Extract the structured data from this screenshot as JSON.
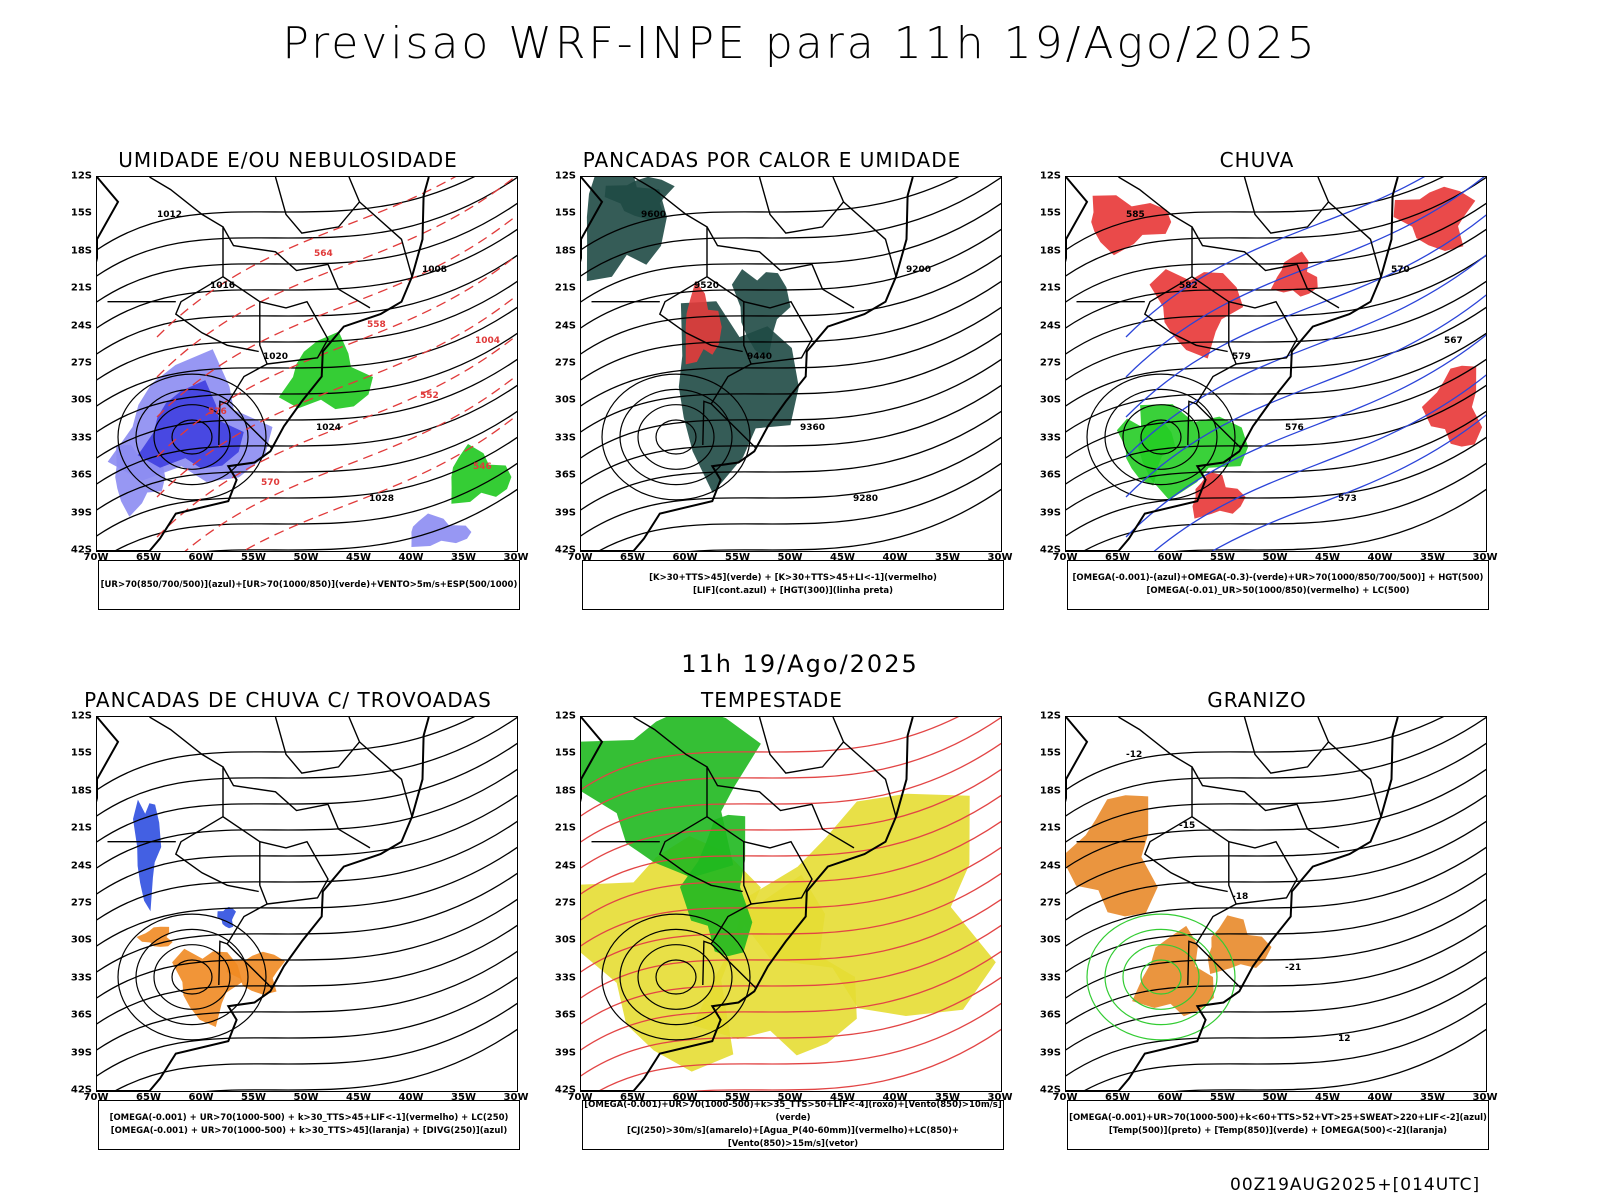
{
  "header": {
    "title": "Previsao WRF-INPE  para 11h 19/Ago/2025"
  },
  "mid_label": "11h 19/Ago/2025",
  "footer": "00Z19AUG2025+[014UTC]",
  "axes": {
    "lat": [
      "12S",
      "15S",
      "18S",
      "21S",
      "24S",
      "27S",
      "30S",
      "33S",
      "36S",
      "39S",
      "42S"
    ],
    "lon": [
      "70W",
      "65W",
      "60W",
      "55W",
      "50W",
      "45W",
      "40W",
      "35W",
      "30W"
    ]
  },
  "panels": [
    {
      "title": "UMIDADE E/OU NEBULOSIDADE",
      "legend": [
        "[UR>70(850/700/500)](azul)+[UR>70(1000/850)](verde)+VENTO>5m/s+ESP(500/1000)"
      ],
      "labels": [
        "1012",
        "1016",
        "1020",
        "1024",
        "1028",
        "1008",
        "1004",
        "576",
        "570",
        "564",
        "558",
        "552",
        "546"
      ],
      "colors": {
        "fill1": "#8c8cf2",
        "fill2": "#3f3fe0",
        "contour": "#e03a3a",
        "green": "#1fc81f"
      }
    },
    {
      "title": "PANCADAS POR CALOR E UMIDADE",
      "legend": [
        "[K>30+TTS>45](verde) + [K>30+TTS>45+LI<-1](vermelho)",
        "[LIF](cont.azul) + [HGT(300)](linha preta)"
      ],
      "labels": [
        "9600",
        "9520",
        "9440",
        "9360",
        "9280",
        "9200"
      ],
      "colors": {
        "fill1": "#1f4a45",
        "fill2": "#e33b3b",
        "contour": "#2b44d8"
      }
    },
    {
      "title": "CHUVA",
      "legend": [
        "[OMEGA(-0.001)-(azul)+OMEGA(-0.3)-(verde)+UR>70(1000/850/700/500)] + HGT(500)",
        "[OMEGA(-0.01)_UR>50(1000/850)(vermelho) + LC(500)"
      ],
      "labels": [
        "585",
        "582",
        "579",
        "576",
        "573",
        "570",
        "567"
      ],
      "colors": {
        "fill1": "#e83636",
        "fill2": "#25cc25",
        "contour": "#2b44d8"
      }
    },
    {
      "title": "PANCADAS DE CHUVA C/ TROVOADAS",
      "legend": [
        "[OMEGA(-0.001) + UR>70(1000-500) + k>30_TTS>45+LIF<-1](vermelho) + LC(250)",
        "[OMEGA(-0.001) + UR>70(1000-500) + k>30_TTS>45](laranja) + [DIVG(250)](azul)"
      ],
      "labels": [],
      "colors": {
        "fill1": "#f08a22",
        "fill2": "#2f4fe0",
        "contour": "#000000"
      }
    },
    {
      "title": "TEMPESTADE",
      "legend": [
        "[OMEGA(-0.001)+UR>70(1000-500)+k>35_TTS>50+LIF<-4](roxo)+[Vento(850)>10m/s](verde)",
        "[CJ(250)>30m/s](amarelo)+[Agua_P(40-60mm)](vermelho)+LC(850)+[Vento(850)>15m/s](vetor)"
      ],
      "labels": [],
      "colors": {
        "fill1": "#e6dd33",
        "fill2": "#1fb81f",
        "contour": "#e24545"
      }
    },
    {
      "title": "GRANIZO",
      "legend": [
        "[OMEGA(-0.001)+UR>70(1000-500)+k<60+TTS>52+VT>25+SWEAT>220+LIF<-2](azul)",
        "[Temp(500)](preto) + [Temp(850)](verde) + [OMEGA(500)<-2](laranja)"
      ],
      "labels": [
        "-12",
        "-15",
        "-18",
        "-21",
        "12"
      ],
      "colors": {
        "fill1": "#e88a2a",
        "fill2": "#33cc33",
        "contour": "#33cc33"
      }
    }
  ]
}
